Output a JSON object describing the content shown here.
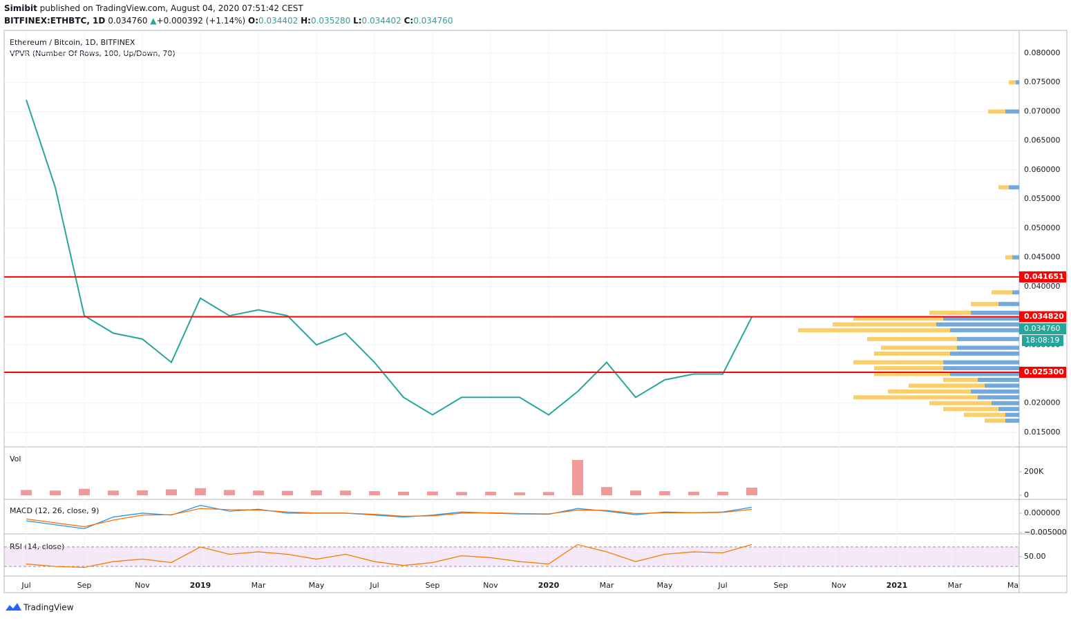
{
  "header": {
    "author": "Simibit",
    "published": "published on TradingView.com, August 04, 2020 07:51:42 CEST",
    "symbol": "BITFINEX:ETHBTC, 1D",
    "last": "0.034760",
    "arrow": "▲",
    "change": "+0.000392 (+1.14%)",
    "o_label": "O:",
    "open": "0.034402",
    "h_label": "H:",
    "high": "0.035280",
    "l_label": "L:",
    "low": "0.034402",
    "c_label": "C:",
    "close": "0.034760"
  },
  "footer": {
    "brand": "TradingView"
  },
  "chart_data": [
    {
      "type": "line",
      "title": "Ethereum / Bitcoin, 1D, BITFINEX",
      "subtitle": "VPVR (Number Of Rows, 100, Up/Down, 70)",
      "categories": [
        null,
        "Jul",
        null,
        "Sep",
        null,
        "Nov",
        null,
        "2019",
        null,
        "Mar",
        null,
        "May",
        null,
        "Jul",
        null,
        "Sep",
        null,
        "Nov",
        null,
        "2020",
        null,
        "Mar",
        null,
        "May",
        null,
        "Jul",
        null,
        "Sep",
        null,
        "Nov",
        null,
        "2021",
        null,
        "Mar",
        null,
        "Ma"
      ],
      "series": [
        {
          "name": "ETHBTC",
          "color": "#26a69a",
          "values": [
            null,
            0.072,
            0.057,
            0.035,
            0.032,
            0.031,
            0.027,
            0.038,
            0.035,
            0.036,
            0.035,
            0.03,
            0.032,
            0.027,
            0.021,
            0.018,
            0.021,
            0.021,
            0.021,
            0.018,
            0.022,
            0.027,
            0.021,
            0.024,
            0.025,
            0.025,
            0.03476,
            null,
            null,
            null,
            null,
            null,
            null,
            null,
            null,
            null
          ]
        }
      ],
      "ylim": [
        0.01251,
        0.08379
      ],
      "yticks": [
        {
          "value": 0.08,
          "label": "0.080000"
        },
        {
          "value": 0.075,
          "label": "0.075000"
        },
        {
          "value": 0.07,
          "label": "0.070000"
        },
        {
          "value": 0.065,
          "label": "0.065000"
        },
        {
          "value": 0.06,
          "label": "0.060000"
        },
        {
          "value": 0.055,
          "label": "0.055000"
        },
        {
          "value": 0.05,
          "label": "0.050000"
        },
        {
          "value": 0.045,
          "label": "0.045000"
        },
        {
          "value": 0.04,
          "label": "0.040000"
        },
        {
          "value": 0.035,
          "label": "0.035000"
        },
        {
          "value": 0.03,
          "label": "0.030000"
        },
        {
          "value": 0.025,
          "label": "0.025000"
        },
        {
          "value": 0.02,
          "label": "0.020000"
        },
        {
          "value": 0.015,
          "label": "0.015000"
        }
      ],
      "grid": true,
      "hlines": [
        {
          "value": 0.041651,
          "label": "0.041651",
          "color": "#ff0000"
        },
        {
          "value": 0.03482,
          "label": "0.034820",
          "color": "#ff0000"
        },
        {
          "value": 0.0253,
          "label": "0.025300",
          "color": "#ff0000"
        }
      ],
      "last_price": {
        "value": 0.03476,
        "label": "0.034760",
        "countdown": "18:08:19",
        "color": "#26a69a"
      },
      "vpvr": {
        "prices": [
          0.075,
          0.07,
          0.057,
          0.045,
          0.039,
          0.037,
          0.0355,
          0.0345,
          0.0335,
          0.0325,
          0.031,
          0.0295,
          0.0285,
          0.027,
          0.026,
          0.025,
          0.024,
          0.023,
          0.022,
          0.021,
          0.02,
          0.019,
          0.018,
          0.017
        ],
        "up": [
          5,
          20,
          15,
          10,
          10,
          30,
          70,
          110,
          120,
          100,
          90,
          90,
          100,
          110,
          110,
          100,
          60,
          50,
          70,
          60,
          40,
          30,
          20,
          20
        ],
        "down": [
          10,
          25,
          15,
          10,
          30,
          40,
          60,
          130,
          150,
          220,
          130,
          110,
          110,
          130,
          100,
          110,
          50,
          110,
          120,
          180,
          90,
          80,
          60,
          30
        ],
        "up_color": "#5b9bd5",
        "down_color": "#f9c74f"
      }
    },
    {
      "type": "bar",
      "title": "Vol",
      "color": "#ef9a9a",
      "values": [
        null,
        45000,
        40000,
        55000,
        40000,
        42000,
        50000,
        60000,
        45000,
        40000,
        38000,
        42000,
        40000,
        35000,
        30000,
        32000,
        28000,
        30000,
        25000,
        28000,
        300000,
        70000,
        40000,
        35000,
        30000,
        30000,
        65000,
        null,
        null,
        null,
        null,
        null,
        null,
        null,
        null,
        null
      ],
      "ylim": [
        -29000,
        394000
      ],
      "yticks": [
        {
          "value": 200000,
          "label": "200K"
        },
        0
      ]
    },
    {
      "type": "line",
      "title": "MACD (12, 26, close, 9)",
      "series": [
        {
          "name": "MACD",
          "color": "#2196f3",
          "values": [
            null,
            -0.002,
            -0.003,
            -0.004,
            -0.001,
            0,
            -0.0005,
            0.002,
            0.0005,
            0.001,
            0,
            0,
            0,
            -0.0005,
            -0.001,
            -0.0005,
            0.0003,
            0,
            -0.0002,
            -0.0003,
            0.0012,
            0.0005,
            -0.0004,
            0.0003,
            0.0001,
            0.0003,
            0.0015,
            null,
            null,
            null,
            null,
            null,
            null,
            null,
            null,
            null
          ]
        },
        {
          "name": "Signal",
          "color": "#ff6d00",
          "values": [
            null,
            -0.0015,
            -0.0025,
            -0.0035,
            -0.0018,
            -0.0005,
            -0.0004,
            0.0012,
            0.0009,
            0.0008,
            0.0003,
            0,
            0,
            -0.0003,
            -0.0008,
            -0.0007,
            0,
            0.0001,
            -0.0001,
            -0.0002,
            0.0008,
            0.0007,
            -0.0001,
            0.0001,
            0.0001,
            0.0002,
            0.001,
            null,
            null,
            null,
            null,
            null,
            null,
            null,
            null,
            null
          ]
        }
      ],
      "ylim": [
        -0.00518,
        0.0032
      ],
      "yticks": [
        {
          "value": 0,
          "label": "0.000000"
        },
        {
          "value": -0.005,
          "label": "−0.005000"
        }
      ]
    },
    {
      "type": "line",
      "title": "RSI (14, close)",
      "series": [
        {
          "name": "RSI",
          "color": "#f57c00",
          "values": [
            null,
            35,
            30,
            28,
            40,
            45,
            38,
            70,
            55,
            60,
            55,
            45,
            55,
            40,
            32,
            38,
            52,
            48,
            40,
            35,
            75,
            60,
            40,
            55,
            60,
            58,
            75,
            null,
            null,
            null,
            null,
            null,
            null,
            null,
            null,
            null
          ]
        }
      ],
      "ylim": [
        11.7,
        94
      ],
      "yticks": [
        {
          "value": 50,
          "label": "50.00"
        }
      ],
      "bands": [
        30,
        70
      ]
    }
  ]
}
